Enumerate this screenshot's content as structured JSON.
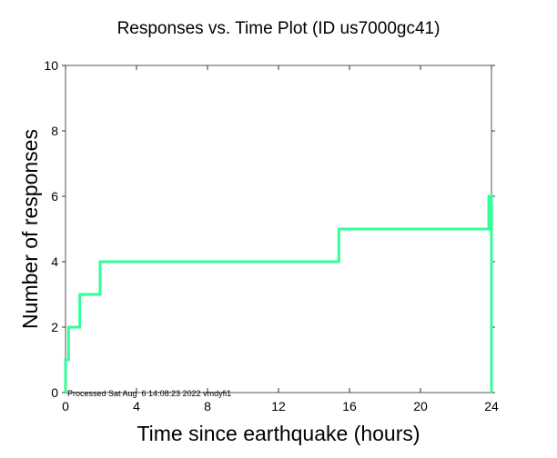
{
  "chart_data": {
    "type": "line",
    "step": true,
    "title": "Responses vs. Time Plot (ID us7000gc41)",
    "xlabel": "Time since earthquake (hours)",
    "ylabel": "Number of responses",
    "xlim": [
      0,
      24
    ],
    "ylim": [
      0,
      10
    ],
    "xticks": [
      0,
      4,
      8,
      12,
      16,
      20,
      24
    ],
    "yticks": [
      0,
      2,
      4,
      6,
      8,
      10
    ],
    "grid": false,
    "line_color": "#33ff99",
    "series": [
      {
        "name": "responses",
        "x": [
          0,
          0,
          0.17,
          0.8,
          1.95,
          15.4,
          23.85,
          24,
          24
        ],
        "y": [
          0,
          1,
          2,
          3,
          4,
          5,
          6,
          6,
          0
        ]
      }
    ],
    "annotation": "Processed Sat Aug  6 14:08:23 2022 vmdyfi1"
  }
}
